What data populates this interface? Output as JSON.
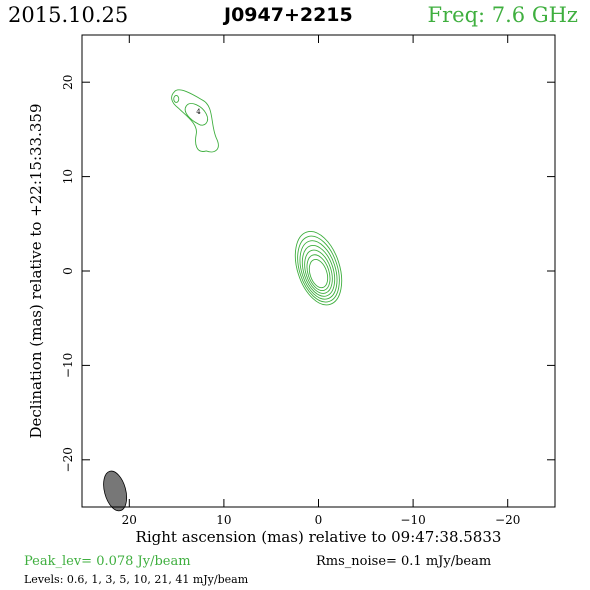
{
  "header": {
    "date": "2015.10.25",
    "source": "J0947+2215",
    "freq": "Freq: 7.6 GHz"
  },
  "footer": {
    "peak": "Peak_lev=  0.078 Jy/beam",
    "rms": "Rms_noise=  0.1 mJy/beam",
    "levels": "Levels: 0.6,    1,    3,    5,   10,   21,   41  mJy/beam"
  },
  "colors": {
    "contour": "#3faf3f",
    "beam": "#777777",
    "accent": "#3faf3f"
  },
  "chart_data": {
    "type": "contour",
    "xlabel": "Right ascension (mas) relative to 09:47:38.5833",
    "ylabel": "Declination (mas) relative to +22:15:33.359",
    "xlim": [
      25,
      -25
    ],
    "ylim": [
      -25,
      25
    ],
    "xticks": [
      20,
      10,
      0,
      -10,
      -20
    ],
    "xtick_labels": [
      "20",
      "10",
      "0",
      "−10",
      "−20"
    ],
    "yticks": [
      20,
      10,
      0,
      -10,
      -20
    ],
    "ytick_labels": [
      "20",
      "10",
      "0",
      "−10",
      "−20"
    ],
    "contour_levels_mJy": [
      0.6,
      1,
      3,
      5,
      10,
      21,
      41
    ],
    "core": {
      "ra": 0,
      "dec": 0.3,
      "levels": 7
    },
    "jet_component": {
      "ra": 12.5,
      "dec": 16,
      "levels": 3,
      "label": "4"
    },
    "beam": {
      "ra": 21.5,
      "dec": -23.3,
      "major_mas": 3.2,
      "minor_mas": 1.4,
      "pa_deg": -15
    }
  }
}
